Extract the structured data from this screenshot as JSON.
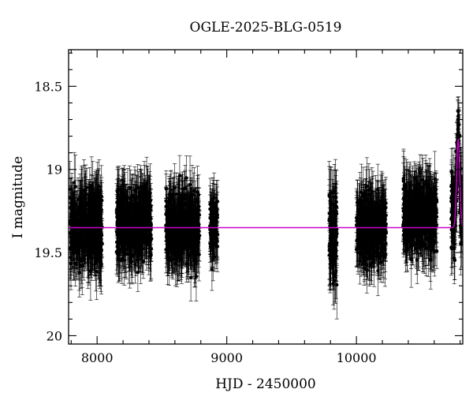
{
  "chart_data": {
    "type": "scatter",
    "title": "OGLE-2025-BLG-0519",
    "xlabel": "HJD - 2450000",
    "ylabel": "I magnitude",
    "xlim": [
      7780,
      10820
    ],
    "ylim": [
      20.05,
      18.28
    ],
    "y_inverted": true,
    "x_ticks": [
      8000,
      9000,
      10000
    ],
    "x_tick_labels": [
      "8000",
      "9000",
      "10000"
    ],
    "y_ticks": [
      18.5,
      19,
      19.5,
      20
    ],
    "y_tick_labels": [
      "18.5",
      "19",
      "19.5",
      "20"
    ],
    "grid": false,
    "legend": "none",
    "point_color": "#000000",
    "model_color": "#cc00cc",
    "baseline_mag": 19.35,
    "seasons": [
      {
        "x_start": 7790,
        "x_end": 8040,
        "mean_mag": 19.35,
        "scatter": 0.11,
        "errbar": 0.15
      },
      {
        "x_start": 8150,
        "x_end": 8420,
        "mean_mag": 19.33,
        "scatter": 0.1,
        "errbar": 0.14
      },
      {
        "x_start": 8530,
        "x_end": 8790,
        "mean_mag": 19.35,
        "scatter": 0.1,
        "errbar": 0.14
      },
      {
        "x_start": 8870,
        "x_end": 8930,
        "mean_mag": 19.35,
        "scatter": 0.09,
        "errbar": 0.12
      },
      {
        "x_start": 9790,
        "x_end": 9850,
        "mean_mag": 19.4,
        "scatter": 0.13,
        "errbar": 0.17
      },
      {
        "x_start": 10000,
        "x_end": 10230,
        "mean_mag": 19.36,
        "scatter": 0.1,
        "errbar": 0.14
      },
      {
        "x_start": 10360,
        "x_end": 10620,
        "mean_mag": 19.28,
        "scatter": 0.1,
        "errbar": 0.14
      },
      {
        "x_start": 10730,
        "x_end": 10815,
        "mean_mag": 19.25,
        "scatter": 0.12,
        "errbar": 0.15
      }
    ],
    "event": {
      "t0": 10785,
      "tE": 12,
      "peak_mag": 18.82,
      "peak_points_mag": 18.65
    }
  }
}
